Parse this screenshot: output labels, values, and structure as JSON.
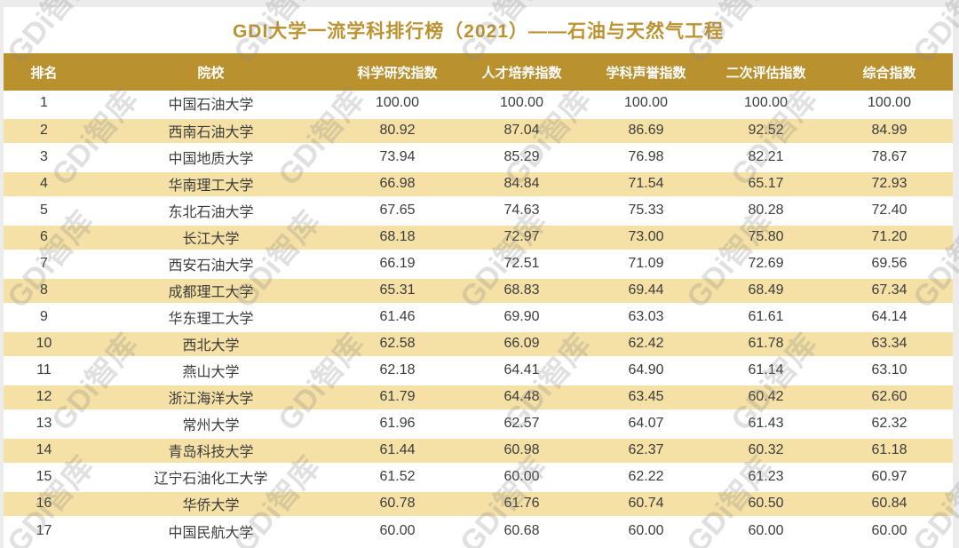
{
  "title": "GDI大学一流学科排行榜（2021）——石油与天然气工程",
  "watermark": {
    "text": "GDi智库"
  },
  "colors": {
    "header_gold": "#B9912F",
    "title_gold": "#BD9331",
    "stripe_cream": "#F5E1A5",
    "body_text": "#3C3C3C",
    "page_margin_gray": "#ECECEC"
  },
  "chart_data": {
    "type": "table",
    "title": "GDI大学一流学科排行榜（2021）——石油与天然气工程",
    "columns": [
      "排名",
      "院校",
      "科学研究指数",
      "人才培养指数",
      "学科声誉指数",
      "二次评估指数",
      "综合指数"
    ],
    "rows": [
      [
        "1",
        "中国石油大学",
        "100.00",
        "100.00",
        "100.00",
        "100.00",
        "100.00"
      ],
      [
        "2",
        "西南石油大学",
        "80.92",
        "87.04",
        "86.69",
        "92.52",
        "84.99"
      ],
      [
        "3",
        "中国地质大学",
        "73.94",
        "85.29",
        "76.98",
        "82.21",
        "78.67"
      ],
      [
        "4",
        "华南理工大学",
        "66.98",
        "84.84",
        "71.54",
        "65.17",
        "72.93"
      ],
      [
        "5",
        "东北石油大学",
        "67.65",
        "74.63",
        "75.33",
        "80.28",
        "72.40"
      ],
      [
        "6",
        "长江大学",
        "68.18",
        "72.97",
        "73.00",
        "75.80",
        "71.20"
      ],
      [
        "7",
        "西安石油大学",
        "66.19",
        "72.51",
        "71.09",
        "72.69",
        "69.56"
      ],
      [
        "8",
        "成都理工大学",
        "65.31",
        "68.83",
        "69.44",
        "68.49",
        "67.34"
      ],
      [
        "9",
        "华东理工大学",
        "61.46",
        "69.90",
        "63.03",
        "61.61",
        "64.14"
      ],
      [
        "10",
        "西北大学",
        "62.58",
        "66.09",
        "62.42",
        "61.78",
        "63.34"
      ],
      [
        "11",
        "燕山大学",
        "62.18",
        "64.41",
        "64.90",
        "61.14",
        "63.10"
      ],
      [
        "12",
        "浙江海洋大学",
        "61.79",
        "64.48",
        "63.45",
        "60.42",
        "62.60"
      ],
      [
        "13",
        "常州大学",
        "61.96",
        "62.57",
        "64.07",
        "61.43",
        "62.32"
      ],
      [
        "14",
        "青岛科技大学",
        "61.44",
        "60.98",
        "62.37",
        "60.32",
        "61.18"
      ],
      [
        "15",
        "辽宁石油化工大学",
        "61.52",
        "60.00",
        "62.22",
        "61.23",
        "60.97"
      ],
      [
        "16",
        "华侨大学",
        "60.78",
        "61.76",
        "60.74",
        "60.50",
        "60.84"
      ],
      [
        "17",
        "中国民航大学",
        "60.00",
        "60.68",
        "60.00",
        "60.00",
        "60.00"
      ]
    ]
  }
}
